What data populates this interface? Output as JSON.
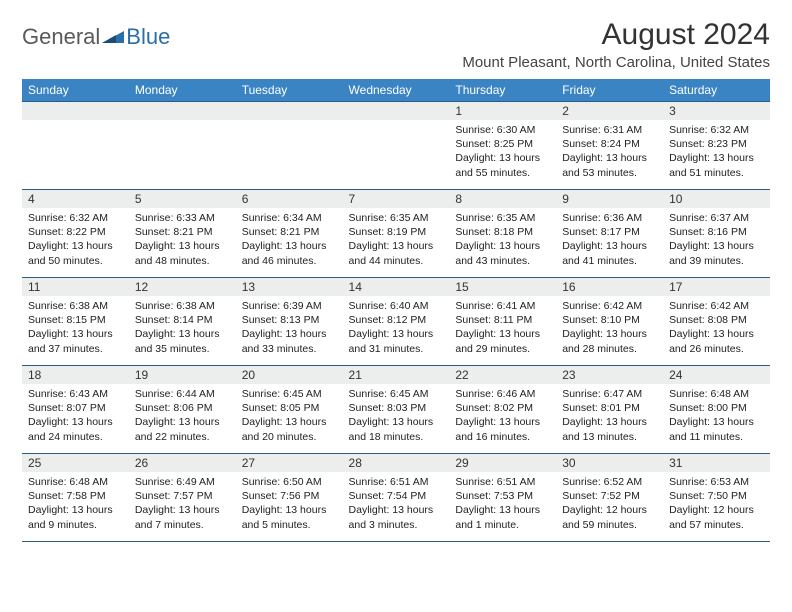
{
  "logo": {
    "text1": "General",
    "text2": "Blue"
  },
  "title": "August 2024",
  "location": "Mount Pleasant, North Carolina, United States",
  "colors": {
    "header_bg": "#3b84c4",
    "header_text": "#ffffff",
    "daynum_bg": "#eceded",
    "border": "#2a5c8a",
    "logo_gray": "#5a5a5a",
    "logo_blue": "#2b6fa8"
  },
  "weekdays": [
    "Sunday",
    "Monday",
    "Tuesday",
    "Wednesday",
    "Thursday",
    "Friday",
    "Saturday"
  ],
  "weeks": [
    [
      null,
      null,
      null,
      null,
      {
        "n": "1",
        "sr": "6:30 AM",
        "ss": "8:25 PM",
        "dl": "13 hours and 55 minutes."
      },
      {
        "n": "2",
        "sr": "6:31 AM",
        "ss": "8:24 PM",
        "dl": "13 hours and 53 minutes."
      },
      {
        "n": "3",
        "sr": "6:32 AM",
        "ss": "8:23 PM",
        "dl": "13 hours and 51 minutes."
      }
    ],
    [
      {
        "n": "4",
        "sr": "6:32 AM",
        "ss": "8:22 PM",
        "dl": "13 hours and 50 minutes."
      },
      {
        "n": "5",
        "sr": "6:33 AM",
        "ss": "8:21 PM",
        "dl": "13 hours and 48 minutes."
      },
      {
        "n": "6",
        "sr": "6:34 AM",
        "ss": "8:21 PM",
        "dl": "13 hours and 46 minutes."
      },
      {
        "n": "7",
        "sr": "6:35 AM",
        "ss": "8:19 PM",
        "dl": "13 hours and 44 minutes."
      },
      {
        "n": "8",
        "sr": "6:35 AM",
        "ss": "8:18 PM",
        "dl": "13 hours and 43 minutes."
      },
      {
        "n": "9",
        "sr": "6:36 AM",
        "ss": "8:17 PM",
        "dl": "13 hours and 41 minutes."
      },
      {
        "n": "10",
        "sr": "6:37 AM",
        "ss": "8:16 PM",
        "dl": "13 hours and 39 minutes."
      }
    ],
    [
      {
        "n": "11",
        "sr": "6:38 AM",
        "ss": "8:15 PM",
        "dl": "13 hours and 37 minutes."
      },
      {
        "n": "12",
        "sr": "6:38 AM",
        "ss": "8:14 PM",
        "dl": "13 hours and 35 minutes."
      },
      {
        "n": "13",
        "sr": "6:39 AM",
        "ss": "8:13 PM",
        "dl": "13 hours and 33 minutes."
      },
      {
        "n": "14",
        "sr": "6:40 AM",
        "ss": "8:12 PM",
        "dl": "13 hours and 31 minutes."
      },
      {
        "n": "15",
        "sr": "6:41 AM",
        "ss": "8:11 PM",
        "dl": "13 hours and 29 minutes."
      },
      {
        "n": "16",
        "sr": "6:42 AM",
        "ss": "8:10 PM",
        "dl": "13 hours and 28 minutes."
      },
      {
        "n": "17",
        "sr": "6:42 AM",
        "ss": "8:08 PM",
        "dl": "13 hours and 26 minutes."
      }
    ],
    [
      {
        "n": "18",
        "sr": "6:43 AM",
        "ss": "8:07 PM",
        "dl": "13 hours and 24 minutes."
      },
      {
        "n": "19",
        "sr": "6:44 AM",
        "ss": "8:06 PM",
        "dl": "13 hours and 22 minutes."
      },
      {
        "n": "20",
        "sr": "6:45 AM",
        "ss": "8:05 PM",
        "dl": "13 hours and 20 minutes."
      },
      {
        "n": "21",
        "sr": "6:45 AM",
        "ss": "8:03 PM",
        "dl": "13 hours and 18 minutes."
      },
      {
        "n": "22",
        "sr": "6:46 AM",
        "ss": "8:02 PM",
        "dl": "13 hours and 16 minutes."
      },
      {
        "n": "23",
        "sr": "6:47 AM",
        "ss": "8:01 PM",
        "dl": "13 hours and 13 minutes."
      },
      {
        "n": "24",
        "sr": "6:48 AM",
        "ss": "8:00 PM",
        "dl": "13 hours and 11 minutes."
      }
    ],
    [
      {
        "n": "25",
        "sr": "6:48 AM",
        "ss": "7:58 PM",
        "dl": "13 hours and 9 minutes."
      },
      {
        "n": "26",
        "sr": "6:49 AM",
        "ss": "7:57 PM",
        "dl": "13 hours and 7 minutes."
      },
      {
        "n": "27",
        "sr": "6:50 AM",
        "ss": "7:56 PM",
        "dl": "13 hours and 5 minutes."
      },
      {
        "n": "28",
        "sr": "6:51 AM",
        "ss": "7:54 PM",
        "dl": "13 hours and 3 minutes."
      },
      {
        "n": "29",
        "sr": "6:51 AM",
        "ss": "7:53 PM",
        "dl": "13 hours and 1 minute."
      },
      {
        "n": "30",
        "sr": "6:52 AM",
        "ss": "7:52 PM",
        "dl": "12 hours and 59 minutes."
      },
      {
        "n": "31",
        "sr": "6:53 AM",
        "ss": "7:50 PM",
        "dl": "12 hours and 57 minutes."
      }
    ]
  ],
  "labels": {
    "sunrise": "Sunrise:",
    "sunset": "Sunset:",
    "daylight": "Daylight:"
  }
}
